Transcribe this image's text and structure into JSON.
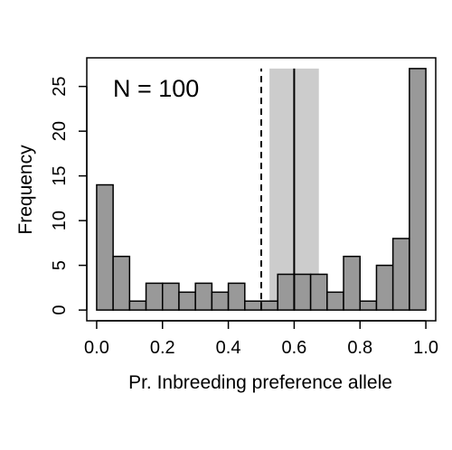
{
  "chart_data": {
    "type": "bar",
    "title": "",
    "xlabel": "Pr. Inbreeding preference allele",
    "ylabel": "Frequency",
    "annotation": "N = 100",
    "bin_width": 0.05,
    "bin_starts": [
      0.0,
      0.05,
      0.1,
      0.15,
      0.2,
      0.25,
      0.3,
      0.35,
      0.4,
      0.45,
      0.5,
      0.55,
      0.6,
      0.65,
      0.7,
      0.75,
      0.8,
      0.85,
      0.9,
      0.95
    ],
    "values": [
      14,
      6,
      1,
      3,
      3,
      2,
      3,
      2,
      3,
      1,
      1,
      4,
      4,
      4,
      2,
      6,
      1,
      5,
      8,
      27
    ],
    "xlim": [
      -0.03,
      1.03
    ],
    "ylim": [
      -1.2,
      28.2
    ],
    "x_ticks": [
      0.0,
      0.2,
      0.4,
      0.6,
      0.8,
      1.0
    ],
    "x_tick_labels": [
      "0.0",
      "0.2",
      "0.4",
      "0.6",
      "0.8",
      "1.0"
    ],
    "y_ticks": [
      0,
      5,
      10,
      15,
      20,
      25
    ],
    "y_tick_labels": [
      "0",
      "5",
      "10",
      "15",
      "20",
      "25"
    ],
    "reference_line_dashed": 0.5,
    "reference_line_solid": 0.6,
    "shaded_interval": [
      0.525,
      0.675
    ],
    "reference_top": 27,
    "colors": {
      "bar_fill": "#999999",
      "bar_stroke": "#000000",
      "shade": "#cccccc",
      "lines": "#000000"
    }
  }
}
